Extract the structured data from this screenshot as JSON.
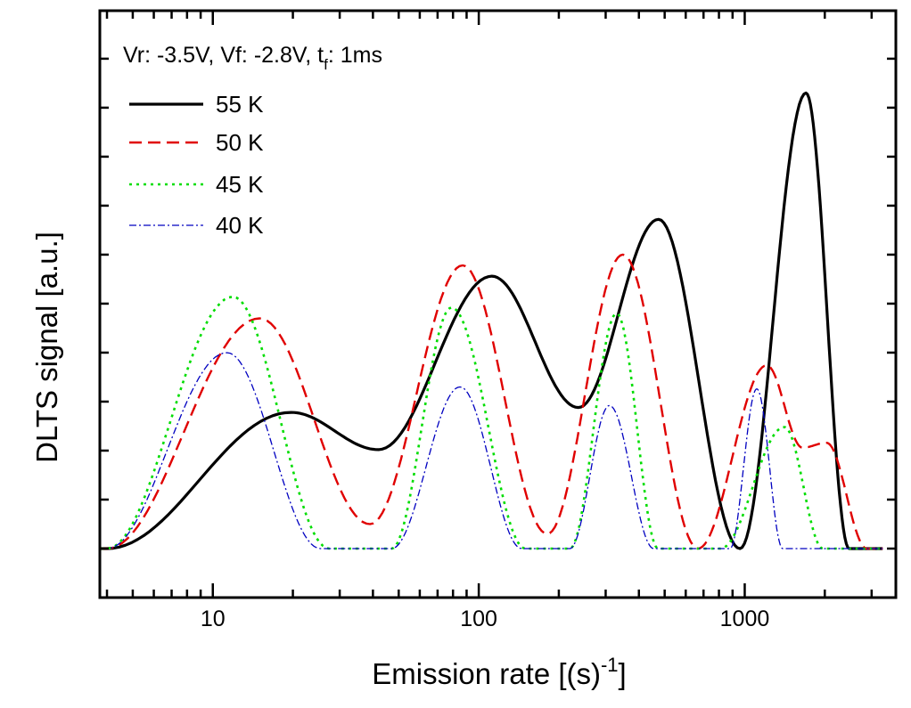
{
  "chart_data": {
    "type": "line",
    "title": "",
    "xlabel": "Emission rate [(s)",
    "xlabel_sup": "-1",
    "xlabel_end": "]",
    "ylabel": "DLTS signal [a.u.]",
    "xscale": "log",
    "xlim": [
      3.76,
      3700
    ],
    "ylim": [
      -0.5,
      5.49
    ],
    "x_tick_labels": [
      "10",
      "100",
      "1000"
    ],
    "x_ticks": [
      10,
      100,
      1000
    ],
    "y_tick_labels_shown": false,
    "grid": false,
    "legend_placement": "top-left",
    "annotation": {
      "main": "Vr: -3.5V, Vf: -2.8V, t",
      "sub": "f",
      "end": ": 1ms"
    },
    "series": [
      {
        "name": "55 K",
        "color": "#000000",
        "style": "solid",
        "points": [
          [
            3.8,
            0
          ],
          [
            4,
            0
          ],
          [
            19.7,
            1.39
          ],
          [
            42,
            1.01
          ],
          [
            112,
            2.78
          ],
          [
            237,
            1.44
          ],
          [
            474,
            3.36
          ],
          [
            960,
            0
          ],
          [
            1700,
            4.65
          ],
          [
            2470,
            0
          ],
          [
            3300,
            0
          ]
        ]
      },
      {
        "name": "50 K",
        "color": "#e00000",
        "style": "dashed",
        "points": [
          [
            3.8,
            0
          ],
          [
            4,
            0
          ],
          [
            15,
            2.35
          ],
          [
            39,
            0.25
          ],
          [
            87,
            2.89
          ],
          [
            181,
            0.15
          ],
          [
            348,
            3.0
          ],
          [
            667,
            0
          ],
          [
            1210,
            1.87
          ],
          [
            1650,
            1.03
          ],
          [
            2030,
            1.08
          ],
          [
            2880,
            0
          ],
          [
            3300,
            0
          ]
        ]
      },
      {
        "name": "45 K",
        "color": "#00dd00",
        "style": "dotted",
        "points": [
          [
            3.8,
            0
          ],
          [
            4,
            0
          ],
          [
            11.9,
            2.57
          ],
          [
            27.4,
            0
          ],
          [
            47,
            0
          ],
          [
            79,
            2.46
          ],
          [
            150,
            0
          ],
          [
            220,
            0
          ],
          [
            330,
            2.4
          ],
          [
            473,
            0
          ],
          [
            810,
            0
          ],
          [
            1410,
            1.24
          ],
          [
            1970,
            0
          ],
          [
            3300,
            0
          ]
        ]
      },
      {
        "name": "40 K",
        "color": "#0000c0",
        "style": "dashdot",
        "points": [
          [
            3.8,
            0
          ],
          [
            4,
            0
          ],
          [
            11.3,
            2.0
          ],
          [
            25.4,
            0
          ],
          [
            47,
            0
          ],
          [
            85,
            1.65
          ],
          [
            145,
            0
          ],
          [
            220,
            0
          ],
          [
            310,
            1.46
          ],
          [
            455,
            0
          ],
          [
            880,
            0
          ],
          [
            1110,
            1.63
          ],
          [
            1390,
            0
          ],
          [
            3300,
            0
          ]
        ]
      }
    ]
  }
}
